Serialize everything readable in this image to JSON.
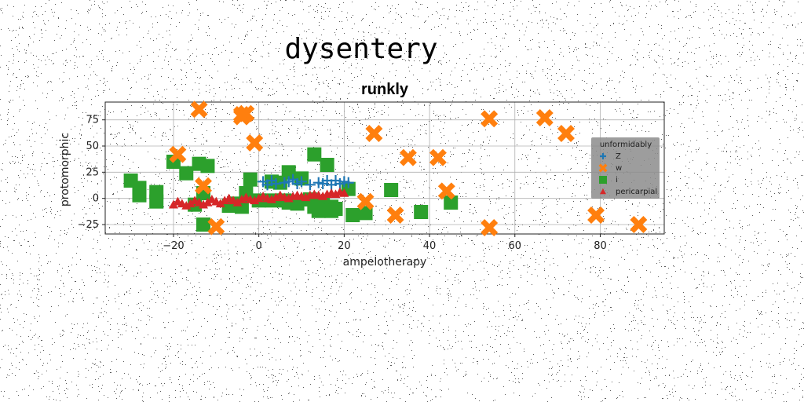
{
  "figure": {
    "suptitle": "dysentery"
  },
  "chart_data": {
    "type": "scatter",
    "title": "runkly",
    "xlabel": "ampelotherapy",
    "ylabel": "protomorphic",
    "xlim": [
      -36,
      95
    ],
    "ylim": [
      -34,
      92
    ],
    "xticks": [
      -20,
      0,
      20,
      40,
      60,
      80
    ],
    "yticks": [
      -25,
      0,
      25,
      50,
      75
    ],
    "tick_labels_x": [
      "−20",
      "0",
      "20",
      "40",
      "60",
      "80"
    ],
    "tick_labels_y": [
      "−25",
      "0",
      "25",
      "50",
      "75"
    ],
    "grid": true,
    "legend": {
      "title": "unformidably",
      "placement": "right",
      "entries": [
        "Z",
        "w",
        "i",
        "pericarpial"
      ]
    },
    "colors": {
      "Z": "#1f77b4",
      "w": "#ff7f0e",
      "i": "#2ca02c",
      "pericarpial": "#d62728"
    },
    "series": [
      {
        "name": "Z",
        "marker": "plus",
        "points": [
          [
            1,
            16
          ],
          [
            2,
            13
          ],
          [
            3,
            17
          ],
          [
            4,
            14
          ],
          [
            6,
            15
          ],
          [
            7,
            16
          ],
          [
            8,
            18
          ],
          [
            9,
            14
          ],
          [
            10,
            16
          ],
          [
            12,
            13
          ],
          [
            14,
            15
          ],
          [
            15,
            14
          ],
          [
            16,
            17
          ],
          [
            17,
            13
          ],
          [
            18,
            17
          ],
          [
            19,
            14
          ],
          [
            20,
            16
          ],
          [
            21,
            15
          ]
        ]
      },
      {
        "name": "w",
        "marker": "x",
        "points": [
          [
            -14,
            85
          ],
          [
            -4,
            80
          ],
          [
            -4,
            78
          ],
          [
            -3,
            81
          ],
          [
            -1,
            53
          ],
          [
            -19,
            42
          ],
          [
            -13,
            12
          ],
          [
            -10,
            -27
          ],
          [
            25,
            -3
          ],
          [
            27,
            62
          ],
          [
            32,
            -16
          ],
          [
            35,
            39
          ],
          [
            42,
            39
          ],
          [
            44,
            7
          ],
          [
            54,
            76
          ],
          [
            54,
            -28
          ],
          [
            67,
            77
          ],
          [
            72,
            62
          ],
          [
            79,
            -16
          ],
          [
            89,
            -25
          ]
        ]
      },
      {
        "name": "i",
        "marker": "square",
        "points": [
          [
            -30,
            17
          ],
          [
            -28,
            10
          ],
          [
            -28,
            3
          ],
          [
            -24,
            -3
          ],
          [
            -24,
            6
          ],
          [
            -20,
            35
          ],
          [
            -17,
            24
          ],
          [
            -14,
            33
          ],
          [
            -12,
            31
          ],
          [
            -13,
            5
          ],
          [
            -15,
            -6
          ],
          [
            -13,
            -25
          ],
          [
            -7,
            -7
          ],
          [
            -5,
            -5
          ],
          [
            -4,
            -8
          ],
          [
            -3,
            5
          ],
          [
            -2,
            18
          ],
          [
            0,
            -2
          ],
          [
            3,
            -2
          ],
          [
            3,
            16
          ],
          [
            5,
            15
          ],
          [
            6,
            -2
          ],
          [
            7,
            25
          ],
          [
            7,
            -4
          ],
          [
            9,
            -5
          ],
          [
            10,
            19
          ],
          [
            12,
            -1
          ],
          [
            13,
            42
          ],
          [
            13,
            -8
          ],
          [
            14,
            -12
          ],
          [
            15,
            -4
          ],
          [
            16,
            32
          ],
          [
            17,
            -8
          ],
          [
            17,
            -12
          ],
          [
            18,
            -10
          ],
          [
            21,
            9
          ],
          [
            22,
            -16
          ],
          [
            25,
            -14
          ],
          [
            31,
            8
          ],
          [
            38,
            -13
          ],
          [
            45,
            -4
          ]
        ]
      },
      {
        "name": "pericarpial",
        "marker": "triangle",
        "points": [
          [
            -20,
            -6
          ],
          [
            -18,
            -5
          ],
          [
            -16,
            -5
          ],
          [
            -14,
            -4
          ],
          [
            -12,
            -4
          ],
          [
            -10,
            -3
          ],
          [
            -8,
            -2
          ],
          [
            -6,
            -2
          ],
          [
            -4,
            -1
          ],
          [
            -2,
            -1
          ],
          [
            0,
            0
          ],
          [
            2,
            0
          ],
          [
            4,
            1
          ],
          [
            6,
            1
          ],
          [
            8,
            2
          ],
          [
            10,
            2
          ],
          [
            12,
            3
          ],
          [
            14,
            3
          ],
          [
            16,
            4
          ],
          [
            18,
            4
          ],
          [
            20,
            5
          ],
          [
            -19,
            -3
          ],
          [
            -15,
            -2
          ],
          [
            -11,
            -1
          ],
          [
            -7,
            0
          ],
          [
            -3,
            1
          ],
          [
            1,
            2
          ],
          [
            5,
            3
          ],
          [
            9,
            3
          ],
          [
            13,
            4
          ],
          [
            17,
            5
          ],
          [
            19,
            6
          ],
          [
            -17,
            -7
          ],
          [
            -13,
            -6
          ],
          [
            -9,
            -5
          ],
          [
            -5,
            -4
          ],
          [
            -1,
            -2
          ],
          [
            3,
            -1
          ],
          [
            7,
            0
          ],
          [
            11,
            1
          ],
          [
            15,
            2
          ]
        ]
      }
    ]
  }
}
